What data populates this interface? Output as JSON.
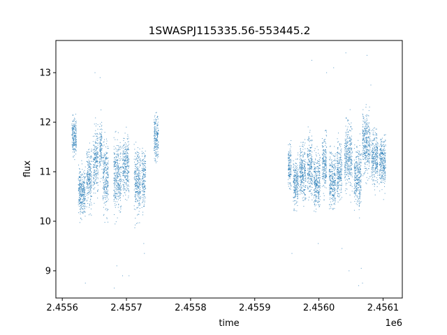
{
  "chart_data": {
    "type": "scatter",
    "title": "1SWASPJ115335.56-553445.2",
    "xlabel": "time",
    "ylabel": "flux",
    "x_offset_label": "1e6",
    "xlim": [
      2455590,
      2456130
    ],
    "ylim": [
      8.45,
      13.65
    ],
    "x_ticks": [
      2455600,
      2455700,
      2455800,
      2455900,
      2456000,
      2456100
    ],
    "x_tick_labels": [
      "2.4556",
      "2.4557",
      "2.4558",
      "2.4559",
      "2.4560",
      "2.4561"
    ],
    "y_ticks": [
      9,
      10,
      11,
      12,
      13
    ],
    "y_tick_labels": [
      "9",
      "10",
      "11",
      "12",
      "13"
    ],
    "grid": false,
    "marker_color": "#1f77b4",
    "series": [
      {
        "segments": [
          {
            "x_start": 2455615,
            "x_end": 2455622,
            "center": 11.7,
            "spread": 0.35
          },
          {
            "x_start": 2455625,
            "x_end": 2455636,
            "center": 10.6,
            "spread": 0.4
          },
          {
            "x_start": 2455638,
            "x_end": 2455646,
            "center": 10.9,
            "spread": 0.5
          },
          {
            "x_start": 2455648,
            "x_end": 2455656,
            "center": 11.2,
            "spread": 0.55
          },
          {
            "x_start": 2455658,
            "x_end": 2455662,
            "center": 11.5,
            "spread": 0.45
          },
          {
            "x_start": 2455663,
            "x_end": 2455672,
            "center": 10.9,
            "spread": 0.55
          },
          {
            "x_start": 2455680,
            "x_end": 2455692,
            "center": 10.9,
            "spread": 0.55
          },
          {
            "x_start": 2455694,
            "x_end": 2455704,
            "center": 11.1,
            "spread": 0.5
          },
          {
            "x_start": 2455712,
            "x_end": 2455722,
            "center": 10.8,
            "spread": 0.55
          },
          {
            "x_start": 2455724,
            "x_end": 2455730,
            "center": 10.9,
            "spread": 0.45
          },
          {
            "x_start": 2455743,
            "x_end": 2455750,
            "center": 11.7,
            "spread": 0.35
          },
          {
            "x_start": 2455952,
            "x_end": 2455957,
            "center": 11.1,
            "spread": 0.35
          },
          {
            "x_start": 2455960,
            "x_end": 2455968,
            "center": 10.75,
            "spread": 0.4
          },
          {
            "x_start": 2455970,
            "x_end": 2455980,
            "center": 11.0,
            "spread": 0.45
          },
          {
            "x_start": 2455982,
            "x_end": 2455990,
            "center": 11.1,
            "spread": 0.5
          },
          {
            "x_start": 2455992,
            "x_end": 2456002,
            "center": 10.8,
            "spread": 0.45
          },
          {
            "x_start": 2456005,
            "x_end": 2456012,
            "center": 11.2,
            "spread": 0.45
          },
          {
            "x_start": 2456016,
            "x_end": 2456026,
            "center": 10.8,
            "spread": 0.45
          },
          {
            "x_start": 2456028,
            "x_end": 2456036,
            "center": 11.0,
            "spread": 0.45
          },
          {
            "x_start": 2456040,
            "x_end": 2456052,
            "center": 11.3,
            "spread": 0.55
          },
          {
            "x_start": 2456055,
            "x_end": 2456066,
            "center": 10.9,
            "spread": 0.5
          },
          {
            "x_start": 2456068,
            "x_end": 2456080,
            "center": 11.6,
            "spread": 0.55
          },
          {
            "x_start": 2456082,
            "x_end": 2456092,
            "center": 11.3,
            "spread": 0.45
          },
          {
            "x_start": 2456094,
            "x_end": 2456104,
            "center": 11.2,
            "spread": 0.4
          }
        ],
        "outliers": [
          [
            2455651,
            13.0
          ],
          [
            2455636,
            8.75
          ],
          [
            2455681,
            8.65
          ],
          [
            2455685,
            9.1
          ],
          [
            2455694,
            8.9
          ],
          [
            2455704,
            8.9
          ],
          [
            2455727,
            9.55
          ],
          [
            2455659,
            12.9
          ],
          [
            2455728,
            9.35
          ],
          [
            2455989,
            13.25
          ],
          [
            2456023,
            13.1
          ],
          [
            2456042,
            13.4
          ],
          [
            2456062,
            8.7
          ],
          [
            2456068,
            8.75
          ],
          [
            2456075,
            13.35
          ],
          [
            2456081,
            12.75
          ],
          [
            2456047,
            9.0
          ],
          [
            2456036,
            9.45
          ],
          [
            2455999,
            9.55
          ],
          [
            2456066,
            9.05
          ],
          [
            2455958,
            9.35
          ],
          [
            2456012,
            13.0
          ]
        ]
      }
    ]
  }
}
